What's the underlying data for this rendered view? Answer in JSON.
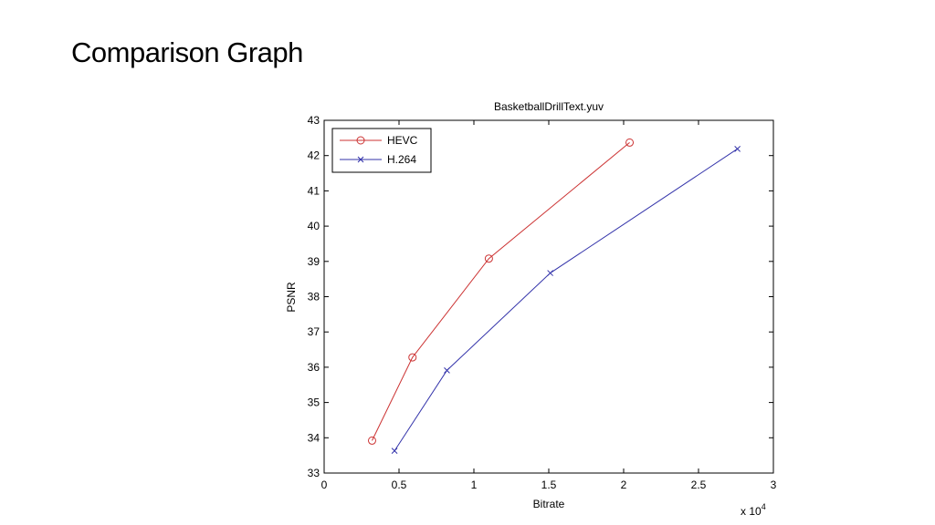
{
  "slide": {
    "title": "Comparison Graph"
  },
  "chart_data": {
    "type": "line",
    "title": "BasketballDrillText.yuv",
    "xlabel": "Bitrate",
    "ylabel": "PSNR",
    "x_multiplier_label": "x 10",
    "x_multiplier_exponent": "4",
    "xlim": [
      0,
      3
    ],
    "ylim": [
      33,
      43
    ],
    "xticks": [
      "0",
      "0.5",
      "1",
      "1.5",
      "2",
      "2.5",
      "3"
    ],
    "yticks": [
      "33",
      "34",
      "35",
      "36",
      "37",
      "38",
      "39",
      "40",
      "41",
      "42",
      "43"
    ],
    "grid": false,
    "legend_position": "top-left",
    "series": [
      {
        "name": "HEVC",
        "color": "#cc3333",
        "marker": "circle",
        "x": [
          0.32,
          0.59,
          1.1,
          2.04
        ],
        "y": [
          33.92,
          36.28,
          39.08,
          42.37
        ]
      },
      {
        "name": "H.264",
        "color": "#3333aa",
        "marker": "x",
        "x": [
          0.47,
          0.82,
          1.51,
          2.76
        ],
        "y": [
          33.63,
          35.91,
          38.67,
          42.19
        ]
      }
    ]
  }
}
